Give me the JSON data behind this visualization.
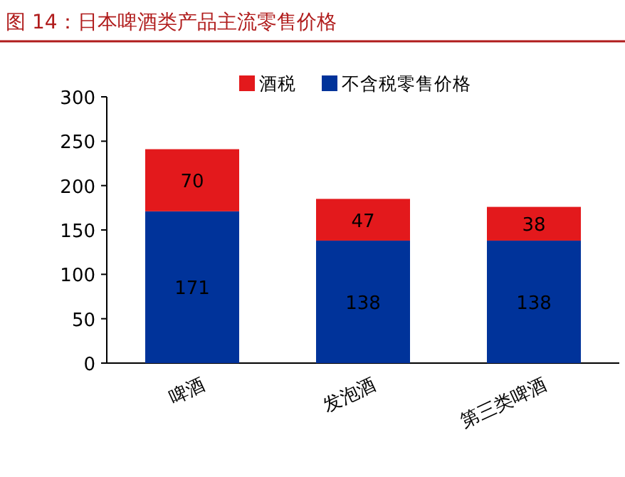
{
  "chart_data": {
    "type": "bar",
    "stacked": true,
    "title": "图 14：日本啤酒类产品主流零售价格",
    "categories": [
      "啤酒",
      "发泡酒",
      "第三类啤酒"
    ],
    "series": [
      {
        "name": "不含税零售价格",
        "color": "#00339a",
        "values": [
          171,
          138,
          138
        ]
      },
      {
        "name": "酒税",
        "color": "#e3191c",
        "values": [
          70,
          47,
          38
        ]
      }
    ],
    "ylim": [
      0,
      300
    ],
    "yticks": [
      0,
      50,
      100,
      150,
      200,
      250,
      300
    ],
    "data_labels": true,
    "legend": "top right",
    "grid": false
  }
}
